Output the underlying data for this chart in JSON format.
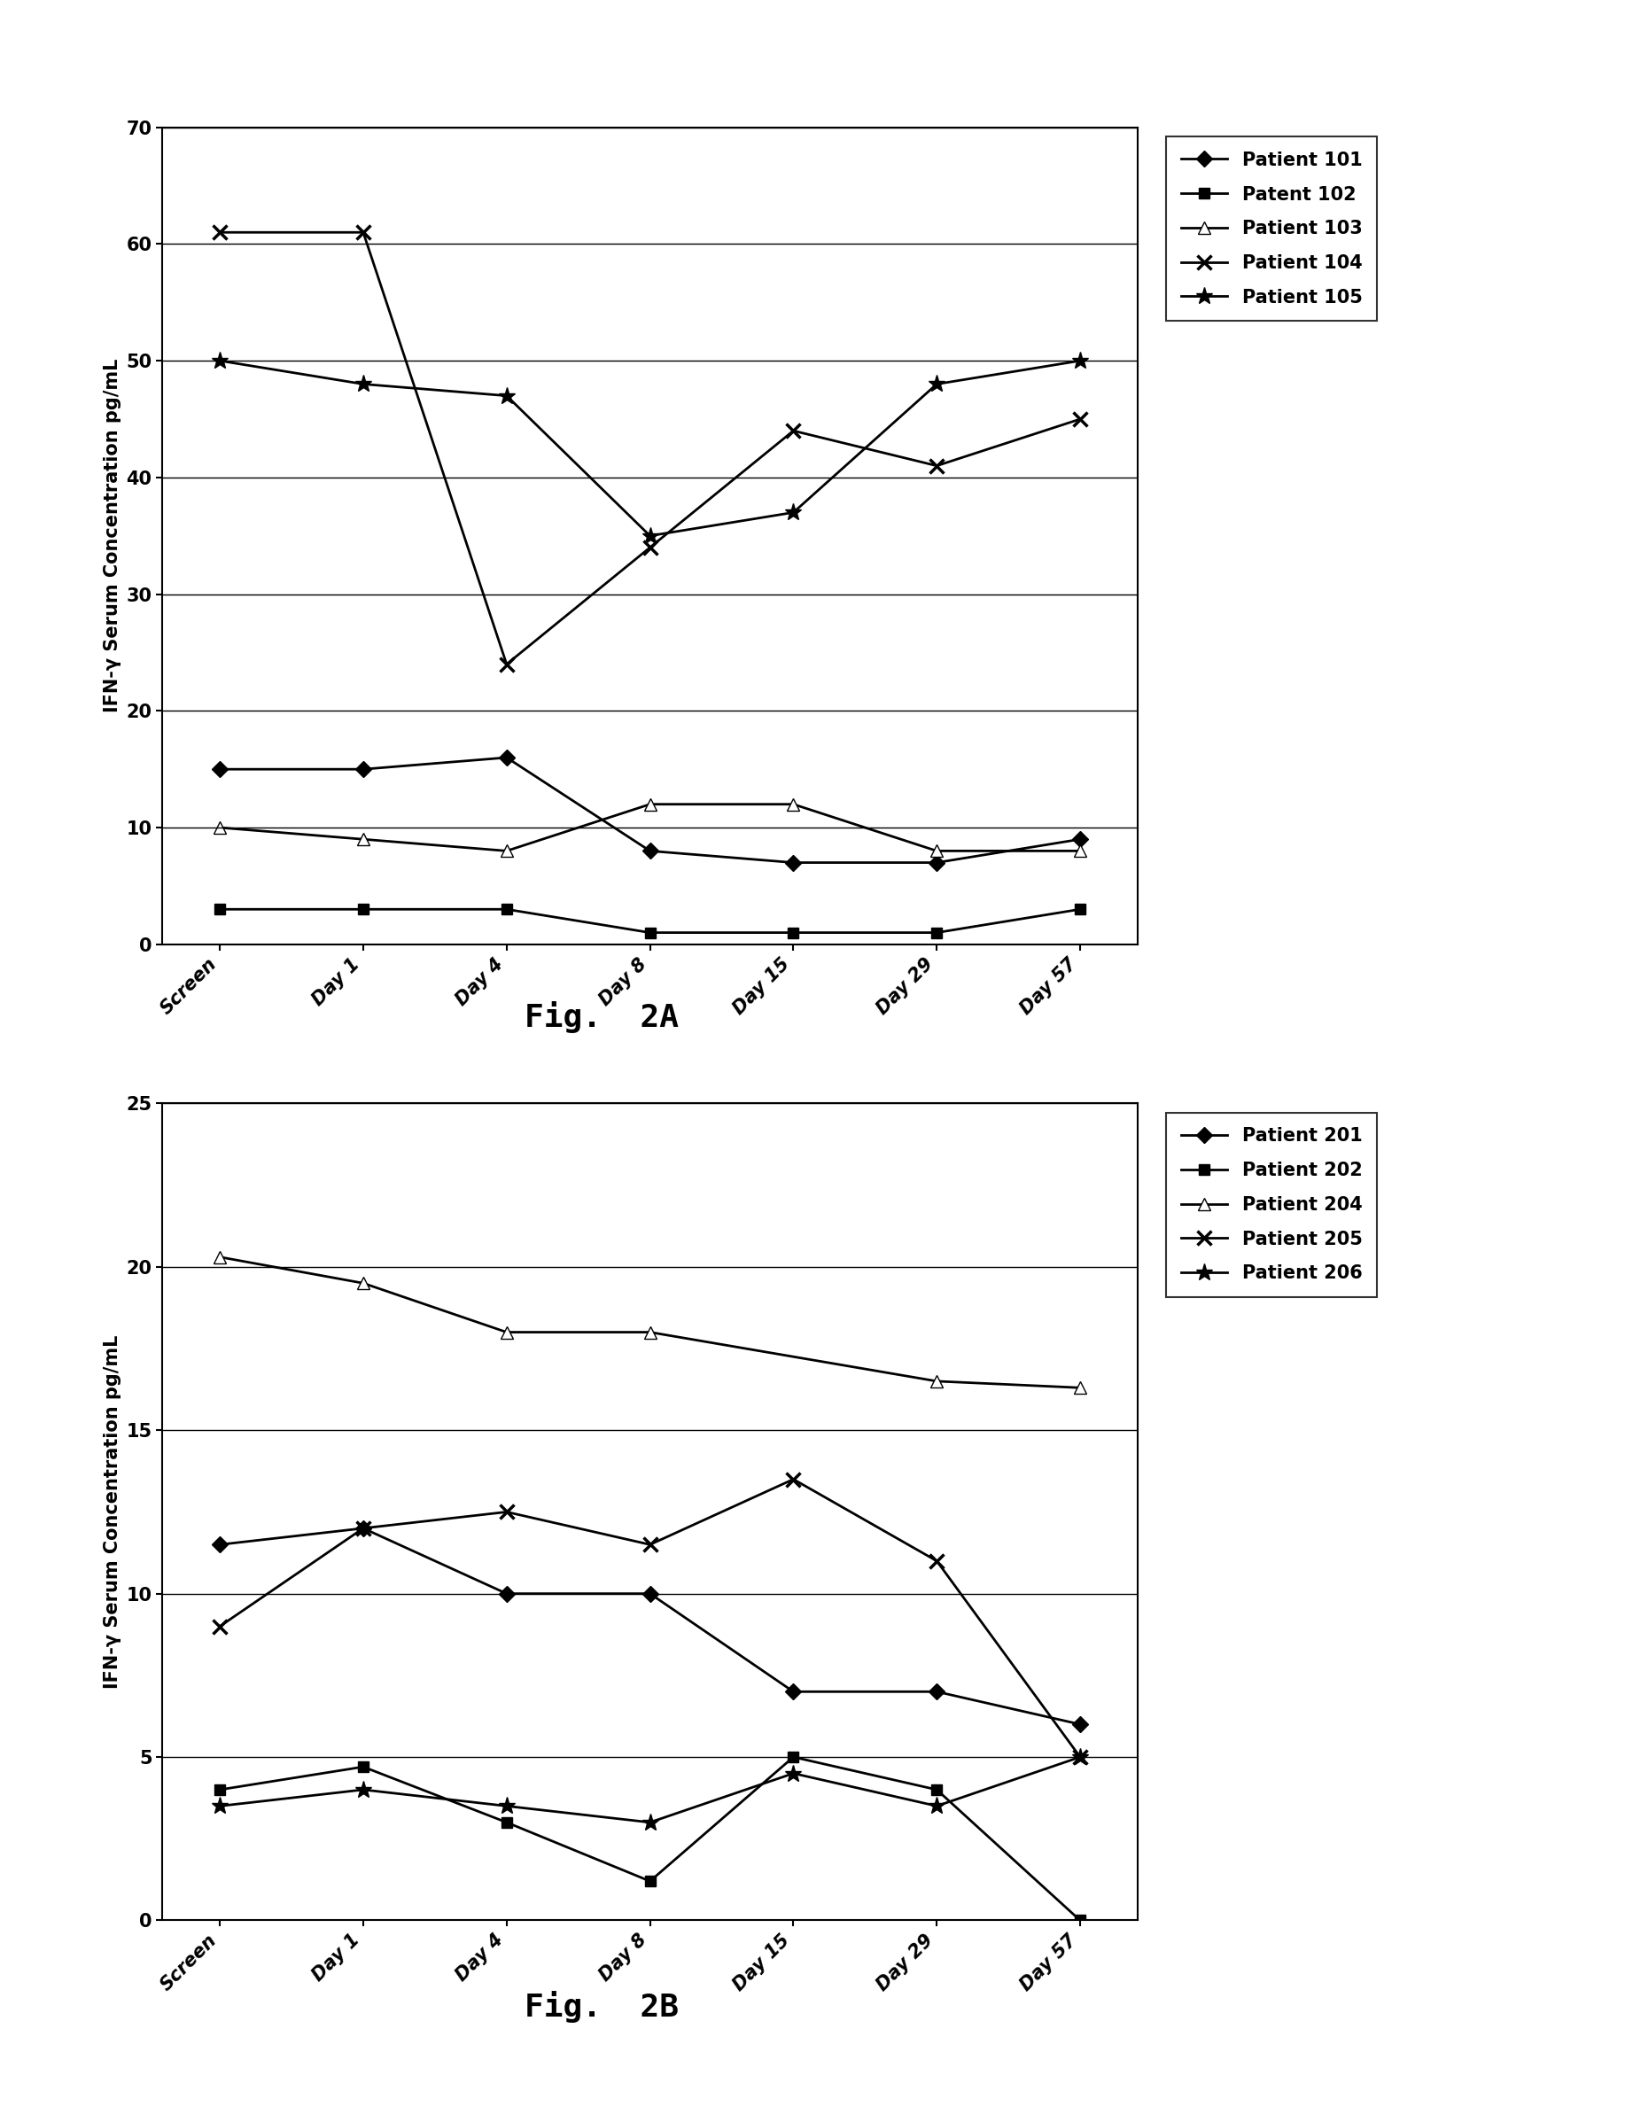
{
  "fig2a": {
    "title": "Fig.  2A",
    "ylabel": "IFN-γ Serum Concentration pg/mL",
    "xlabels": [
      "Screen",
      "Day 1",
      "Day 4",
      "Day 8",
      "Day 15",
      "Day 29",
      "Day 57"
    ],
    "ylim": [
      0,
      70
    ],
    "yticks": [
      0,
      10,
      20,
      30,
      40,
      50,
      60,
      70
    ],
    "series": [
      {
        "label": "Patient 101",
        "values": [
          15,
          15,
          16,
          8,
          7,
          7,
          9
        ],
        "marker": "D",
        "color": "black",
        "markersize": 9,
        "linewidth": 2.0,
        "markerfacecolor": "black"
      },
      {
        "label": "Patent 102",
        "values": [
          3,
          3,
          3,
          1,
          1,
          1,
          3
        ],
        "marker": "s",
        "color": "black",
        "markersize": 9,
        "linewidth": 2.0,
        "markerfacecolor": "black"
      },
      {
        "label": "Patient 103",
        "values": [
          10,
          9,
          8,
          12,
          12,
          8,
          8
        ],
        "marker": "^",
        "color": "black",
        "markersize": 10,
        "linewidth": 2.0,
        "markerfacecolor": "white"
      },
      {
        "label": "Patient 104",
        "values": [
          61,
          61,
          24,
          34,
          44,
          41,
          45
        ],
        "marker": "x",
        "color": "black",
        "markersize": 12,
        "linewidth": 2.0,
        "markerfacecolor": "black",
        "markeredgewidth": 2.5
      },
      {
        "label": "Patient 105",
        "values": [
          50,
          48,
          47,
          35,
          37,
          48,
          50
        ],
        "marker": "*",
        "color": "black",
        "markersize": 14,
        "linewidth": 2.0,
        "markerfacecolor": "black"
      }
    ]
  },
  "fig2b": {
    "title": "Fig.  2B",
    "ylabel": "IFN-γ Serum Concentration pg/mL",
    "xlabels": [
      "Screen",
      "Day 1",
      "Day 4",
      "Day 8",
      "Day 15",
      "Day 29",
      "Day 57"
    ],
    "ylim": [
      0,
      25
    ],
    "yticks": [
      0,
      5,
      10,
      15,
      20,
      25
    ],
    "series": [
      {
        "label": "Patient 201",
        "values": [
          11.5,
          12,
          10,
          10,
          7,
          7,
          6
        ],
        "marker": "D",
        "color": "black",
        "markersize": 9,
        "linewidth": 2.0,
        "markerfacecolor": "black"
      },
      {
        "label": "Patient 202",
        "values": [
          4,
          4.7,
          3,
          1.2,
          5,
          4,
          0
        ],
        "marker": "s",
        "color": "black",
        "markersize": 9,
        "linewidth": 2.0,
        "markerfacecolor": "black"
      },
      {
        "label": "Patient 204",
        "values": [
          20.3,
          19.5,
          18,
          18,
          16.5,
          16.3
        ],
        "marker": "^",
        "color": "black",
        "markersize": 10,
        "linewidth": 2.0,
        "markerfacecolor": "white",
        "x_indices": [
          0,
          1,
          2,
          3,
          5,
          6
        ]
      },
      {
        "label": "Patient 205",
        "values": [
          9,
          12,
          12.5,
          11.5,
          13.5,
          11,
          5
        ],
        "marker": "x",
        "color": "black",
        "markersize": 12,
        "linewidth": 2.0,
        "markerfacecolor": "black",
        "markeredgewidth": 2.5
      },
      {
        "label": "Patient 206",
        "values": [
          3.5,
          4,
          3.5,
          3,
          4.5,
          3.5,
          5
        ],
        "marker": "*",
        "color": "black",
        "markersize": 14,
        "linewidth": 2.0,
        "markerfacecolor": "black"
      }
    ]
  },
  "tick_fontsize": 15,
  "label_fontsize": 15,
  "legend_fontsize": 15,
  "title_fontsize": 26
}
